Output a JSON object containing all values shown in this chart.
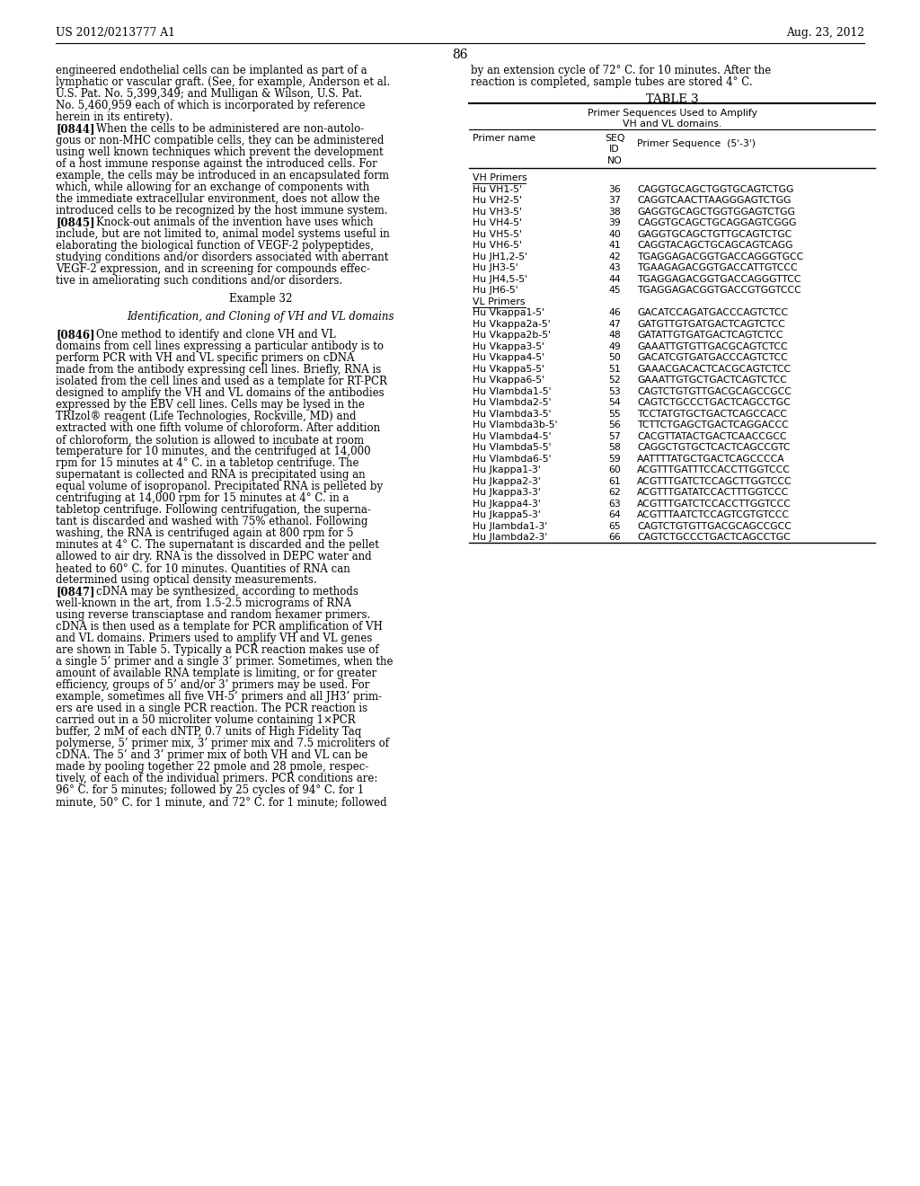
{
  "page_header_left": "US 2012/0213777 A1",
  "page_header_right": "Aug. 23, 2012",
  "page_number": "86",
  "left_column_text": [
    "engineered endothelial cells can be implanted as part of a",
    "lymphatic or vascular graft. (See, for example, Anderson et al.",
    "U.S. Pat. No. 5,399,349; and Mulligan & Wilson, U.S. Pat.",
    "No. 5,460,959 each of which is incorporated by reference",
    "herein in its entirety).",
    "[0844]    When the cells to be administered are non-autolo-",
    "gous or non-MHC compatible cells, they can be administered",
    "using well known techniques which prevent the development",
    "of a host immune response against the introduced cells. For",
    "example, the cells may be introduced in an encapsulated form",
    "which, while allowing for an exchange of components with",
    "the immediate extracellular environment, does not allow the",
    "introduced cells to be recognized by the host immune system.",
    "[0845]    Knock-out animals of the invention have uses which",
    "include, but are not limited to, animal model systems useful in",
    "elaborating the biological function of VEGF-2 polypeptides,",
    "studying conditions and/or disorders associated with aberrant",
    "VEGF-2 expression, and in screening for compounds effec-",
    "tive in ameliorating such conditions and/or disorders.",
    "",
    "Example 32",
    "",
    "Identification, and Cloning of VH and VL domains",
    "",
    "[0846]    One method to identify and clone VH and VL",
    "domains from cell lines expressing a particular antibody is to",
    "perform PCR with VH and VL specific primers on cDNA",
    "made from the antibody expressing cell lines. Briefly, RNA is",
    "isolated from the cell lines and used as a template for RT-PCR",
    "designed to amplify the VH and VL domains of the antibodies",
    "expressed by the EBV cell lines. Cells may be lysed in the",
    "TRIzol® reagent (Life Technologies, Rockville, MD) and",
    "extracted with one fifth volume of chloroform. After addition",
    "of chloroform, the solution is allowed to incubate at room",
    "temperature for 10 minutes, and the centrifuged at 14,000",
    "rpm for 15 minutes at 4° C. in a tabletop centrifuge. The",
    "supernatant is collected and RNA is precipitated using an",
    "equal volume of isopropanol. Precipitated RNA is pelleted by",
    "centrifuging at 14,000 rpm for 15 minutes at 4° C. in a",
    "tabletop centrifuge. Following centrifugation, the superna-",
    "tant is discarded and washed with 75% ethanol. Following",
    "washing, the RNA is centrifuged again at 800 rpm for 5",
    "minutes at 4° C. The supernatant is discarded and the pellet",
    "allowed to air dry. RNA is the dissolved in DEPC water and",
    "heated to 60° C. for 10 minutes. Quantities of RNA can",
    "determined using optical density measurements.",
    "[0847]    cDNA may be synthesized, according to methods",
    "well-known in the art, from 1.5-2.5 micrograms of RNA",
    "using reverse transciaptase and random hexamer primers.",
    "cDNA is then used as a template for PCR amplification of VH",
    "and VL domains. Primers used to amplify VH and VL genes",
    "are shown in Table 5. Typically a PCR reaction makes use of",
    "a single 5’ primer and a single 3’ primer. Sometimes, when the",
    "amount of available RNA template is limiting, or for greater",
    "efficiency, groups of 5’ and/or 3’ primers may be used. For",
    "example, sometimes all five VH-5’ primers and all JH3’ prim-",
    "ers are used in a single PCR reaction. The PCR reaction is",
    "carried out in a 50 microliter volume containing 1×PCR",
    "buffer, 2 mM of each dNTP, 0.7 units of High Fidelity Taq",
    "polymerse, 5’ primer mix, 3’ primer mix and 7.5 microliters of",
    "cDNA. The 5’ and 3’ primer mix of both VH and VL can be",
    "made by pooling together 22 pmole and 28 pmole, respec-",
    "tively, of each of the individual primers. PCR conditions are:",
    "96° C. for 5 minutes; followed by 25 cycles of 94° C. for 1",
    "minute, 50° C. for 1 minute, and 72° C. for 1 minute; followed"
  ],
  "right_column_text_top": [
    "by an extension cycle of 72° C. for 10 minutes. After the",
    "reaction is completed, sample tubes are stored 4° C."
  ],
  "table_title": "TABLE 3",
  "table_subtitle1": "Primer Sequences Used to Amplify",
  "table_subtitle2": "VH and VL domains.",
  "table_data": [
    [
      "VH Primers",
      "",
      ""
    ],
    [
      "Hu VH1-5'",
      "36",
      "CAGGTGCAGCTGGTGCAGTCTGG"
    ],
    [
      "Hu VH2-5'",
      "37",
      "CAGGTCAACTTAAGGGAGTCTGG"
    ],
    [
      "Hu VH3-5'",
      "38",
      "GAGGTGCAGCTGGTGGAGTCTGG"
    ],
    [
      "Hu VH4-5'",
      "39",
      "CAGGTGCAGCTGCAGGAGTCGGG"
    ],
    [
      "Hu VH5-5'",
      "40",
      "GAGGTGCAGCTGTTGCAGTCTGC"
    ],
    [
      "Hu VH6-5'",
      "41",
      "CAGGTACAGCTGCAGCAGTCAGG"
    ],
    [
      "Hu JH1,2-5'",
      "42",
      "TGAGGAGACGGTGACCAGGGTGCC"
    ],
    [
      "Hu JH3-5'",
      "43",
      "TGAAGAGACGGTGACCATTGTCCC"
    ],
    [
      "Hu JH4,5-5'",
      "44",
      "TGAGGAGACGGTGACCAGGGTTCC"
    ],
    [
      "Hu JH6-5'",
      "45",
      "TGAGGAGACGGTGACCGTGGTCCC"
    ],
    [
      "VL Primers",
      "",
      ""
    ],
    [
      "Hu Vkappa1-5'",
      "46",
      "GACATCCAGATGACCCAGTCTCC"
    ],
    [
      "Hu Vkappa2a-5'",
      "47",
      "GATGTTGTGATGACTCAGTCTCC"
    ],
    [
      "Hu Vkappa2b-5'",
      "48",
      "GATATTGTGATGACTCAGTCTCC"
    ],
    [
      "Hu Vkappa3-5'",
      "49",
      "GAAATTGTGTTGACGCAGTCTCC"
    ],
    [
      "Hu Vkappa4-5'",
      "50",
      "GACATCGTGATGACCCAGTCTCC"
    ],
    [
      "Hu Vkappa5-5'",
      "51",
      "GAAACGACACTCACGCAGTCTCC"
    ],
    [
      "Hu Vkappa6-5'",
      "52",
      "GAAATTGTGCTGACTCAGTCTCC"
    ],
    [
      "Hu Vlambda1-5'",
      "53",
      "CAGTCTGTGTTGACGCAGCCGCC"
    ],
    [
      "Hu Vlambda2-5'",
      "54",
      "CAGTCTGCCCTGACTCAGCCTGC"
    ],
    [
      "Hu Vlambda3-5'",
      "55",
      "TCCTATGTGCTGACTCAGCCACC"
    ],
    [
      "Hu Vlambda3b-5'",
      "56",
      "TCTTCTGAGCTGACTCAGGACCC"
    ],
    [
      "Hu Vlambda4-5'",
      "57",
      "CACGTTATACTGACTCAACCGCC"
    ],
    [
      "Hu Vlambda5-5'",
      "58",
      "CAGGCTGTGCTCACTCAGCCGTC"
    ],
    [
      "Hu Vlambda6-5'",
      "59",
      "AATTTTATGCTGACTCAGCCCCA"
    ],
    [
      "Hu Jkappa1-3'",
      "60",
      "ACGTTTGATTTCCACCTTGGTCCC"
    ],
    [
      "Hu Jkappa2-3'",
      "61",
      "ACGTTTGATCTCCAGCTTGGTCCC"
    ],
    [
      "Hu Jkappa3-3'",
      "62",
      "ACGTTTGATATCCACTTTGGTCCC"
    ],
    [
      "Hu Jkappa4-3'",
      "63",
      "ACGTTTGATCTCCACCTTGGTCCC"
    ],
    [
      "Hu Jkappa5-3'",
      "64",
      "ACGTTTAATCTCCAGTCGTGTCCC"
    ],
    [
      "Hu Jlambda1-3'",
      "65",
      "CAGTCTGTGTTGACGCAGCCGCC"
    ],
    [
      "Hu Jlambda2-3'",
      "66",
      "CAGTCTGCCCTGACTCAGCCTGC"
    ]
  ],
  "background_color": "#ffffff",
  "text_color": "#000000"
}
